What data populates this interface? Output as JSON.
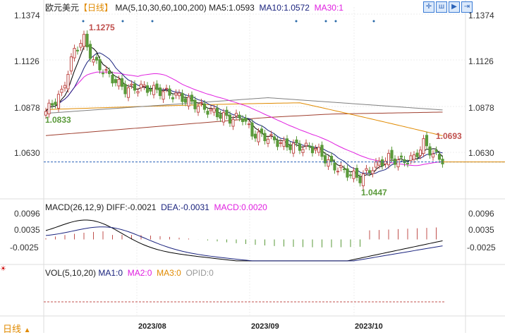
{
  "header": {
    "symbol": "欧元美元",
    "period": "【日线】",
    "ma_label": "MA(5,10,30,60,100,200)",
    "ma5": "MA5:1.0593",
    "ma10": "MA10:1.0572",
    "ma30": "MA30:1"
  },
  "toolbar": {
    "icons": [
      "crosshair-icon",
      "chart-icon",
      "step-icon",
      "exit-icon"
    ]
  },
  "price_axis": [
    "1.1374",
    "1.1126",
    "1.0878",
    "1.0630"
  ],
  "annotations": {
    "high": "1.1275",
    "low": "1.0447",
    "left_low": "1.0833",
    "right_high": "1.0693"
  },
  "macd": {
    "label": "MACD(26,12,9)",
    "diff": "DIFF:-0.0021",
    "dea": "DEA:-0.0031",
    "macd": "MACD:0.0020",
    "axis": [
      "0.0096",
      "0.0035",
      "-0.0025"
    ]
  },
  "vol": {
    "label": "VOL(5,10,20)",
    "ma1": "MA1:0",
    "ma2": "MA2:0",
    "ma3": "MA3:0",
    "opid": "OPID:0"
  },
  "dates": [
    "2023/08",
    "2023/09",
    "2023/10"
  ],
  "footer": {
    "period": "日线",
    "arrow": "▲"
  },
  "colors": {
    "up": "#c0504d",
    "down": "#5a9a3a",
    "ma5": "#000000",
    "ma10": "#1a237e",
    "ma30": "#e020e0",
    "ma60": "#a04030",
    "ma100": "#e08a00",
    "ma200": "#808080"
  },
  "chart_data": {
    "type": "candlestick",
    "ylim": [
      1.04,
      1.1374
    ],
    "close_keypoints": [
      [
        0,
        1.085
      ],
      [
        5,
        1.095
      ],
      [
        9,
        1.118
      ],
      [
        12,
        1.124
      ],
      [
        15,
        1.112
      ],
      [
        20,
        1.104
      ],
      [
        25,
        1.097
      ],
      [
        30,
        1.098
      ],
      [
        36,
        1.096
      ],
      [
        42,
        1.093
      ],
      [
        48,
        1.088
      ],
      [
        55,
        1.083
      ],
      [
        58,
        1.081
      ],
      [
        62,
        1.082
      ],
      [
        65,
        1.073
      ],
      [
        70,
        1.071
      ],
      [
        75,
        1.067
      ],
      [
        80,
        1.066
      ],
      [
        85,
        1.065
      ],
      [
        90,
        1.056
      ],
      [
        95,
        1.052
      ],
      [
        99,
        1.049
      ],
      [
        103,
        1.055
      ],
      [
        108,
        1.06
      ],
      [
        112,
        1.058
      ],
      [
        116,
        1.06
      ],
      [
        119,
        1.068
      ],
      [
        122,
        1.062
      ],
      [
        125,
        1.059
      ]
    ],
    "last_price": 1.0578
  }
}
